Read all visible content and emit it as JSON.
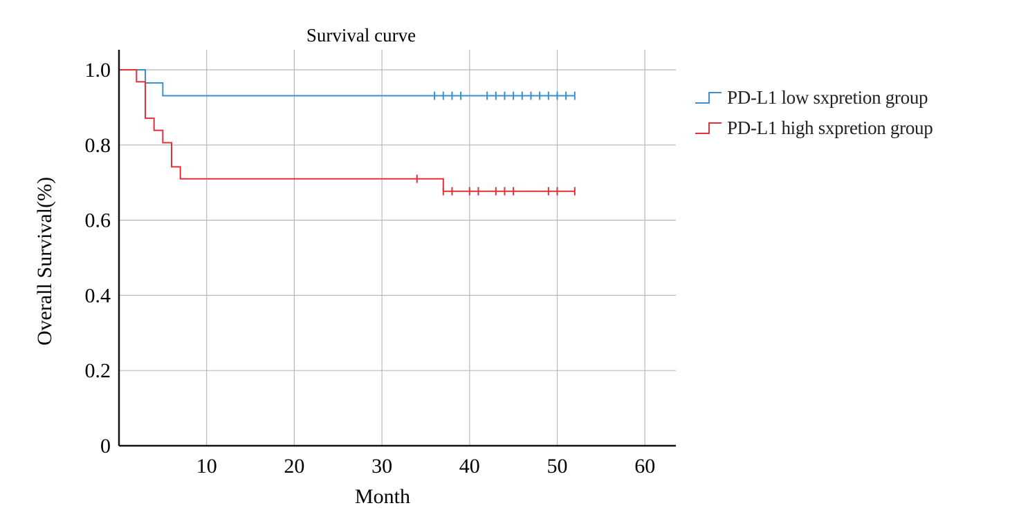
{
  "chart_data": {
    "type": "line",
    "step": true,
    "title": "Survival curve",
    "xlabel": "Month",
    "ylabel": "Overall Survival(%)",
    "xlim": [
      0,
      63
    ],
    "ylim": [
      0,
      1.05
    ],
    "xticks": [
      10,
      20,
      30,
      40,
      50,
      60
    ],
    "xtick_labels": [
      "10",
      "20",
      "30",
      "40",
      "50",
      "60"
    ],
    "yticks": [
      0,
      0.2,
      0.4,
      0.6,
      0.8,
      1.0
    ],
    "ytick_labels": [
      "0",
      "0.2",
      "0.4",
      "0.6",
      "0.8",
      "1.0"
    ],
    "grid": true,
    "legend_position": "right",
    "series": [
      {
        "name": "PD-L1 low sxpretion group",
        "color": "#3a8fd0",
        "steps": [
          [
            0,
            1.0
          ],
          [
            3,
            0.965
          ],
          [
            5,
            0.931
          ],
          [
            52,
            0.931
          ]
        ],
        "censored": [
          [
            36,
            0.931
          ],
          [
            37,
            0.931
          ],
          [
            38,
            0.931
          ],
          [
            39,
            0.931
          ],
          [
            42,
            0.931
          ],
          [
            43,
            0.931
          ],
          [
            44,
            0.931
          ],
          [
            45,
            0.931
          ],
          [
            46,
            0.931
          ],
          [
            47,
            0.931
          ],
          [
            48,
            0.931
          ],
          [
            49,
            0.931
          ],
          [
            50,
            0.931
          ],
          [
            51,
            0.931
          ],
          [
            52,
            0.931
          ]
        ]
      },
      {
        "name": "PD-L1 high sxpretion group",
        "color": "#e0303a",
        "steps": [
          [
            0,
            1.0
          ],
          [
            2,
            0.968
          ],
          [
            3,
            0.871
          ],
          [
            4,
            0.839
          ],
          [
            5,
            0.806
          ],
          [
            6,
            0.742
          ],
          [
            7,
            0.71
          ],
          [
            37,
            0.677
          ],
          [
            52,
            0.677
          ]
        ],
        "censored": [
          [
            34,
            0.71
          ],
          [
            37,
            0.677
          ],
          [
            38,
            0.677
          ],
          [
            40,
            0.677
          ],
          [
            41,
            0.677
          ],
          [
            43,
            0.677
          ],
          [
            44,
            0.677
          ],
          [
            45,
            0.677
          ],
          [
            49,
            0.677
          ],
          [
            50,
            0.677
          ],
          [
            52,
            0.677
          ]
        ]
      }
    ]
  }
}
